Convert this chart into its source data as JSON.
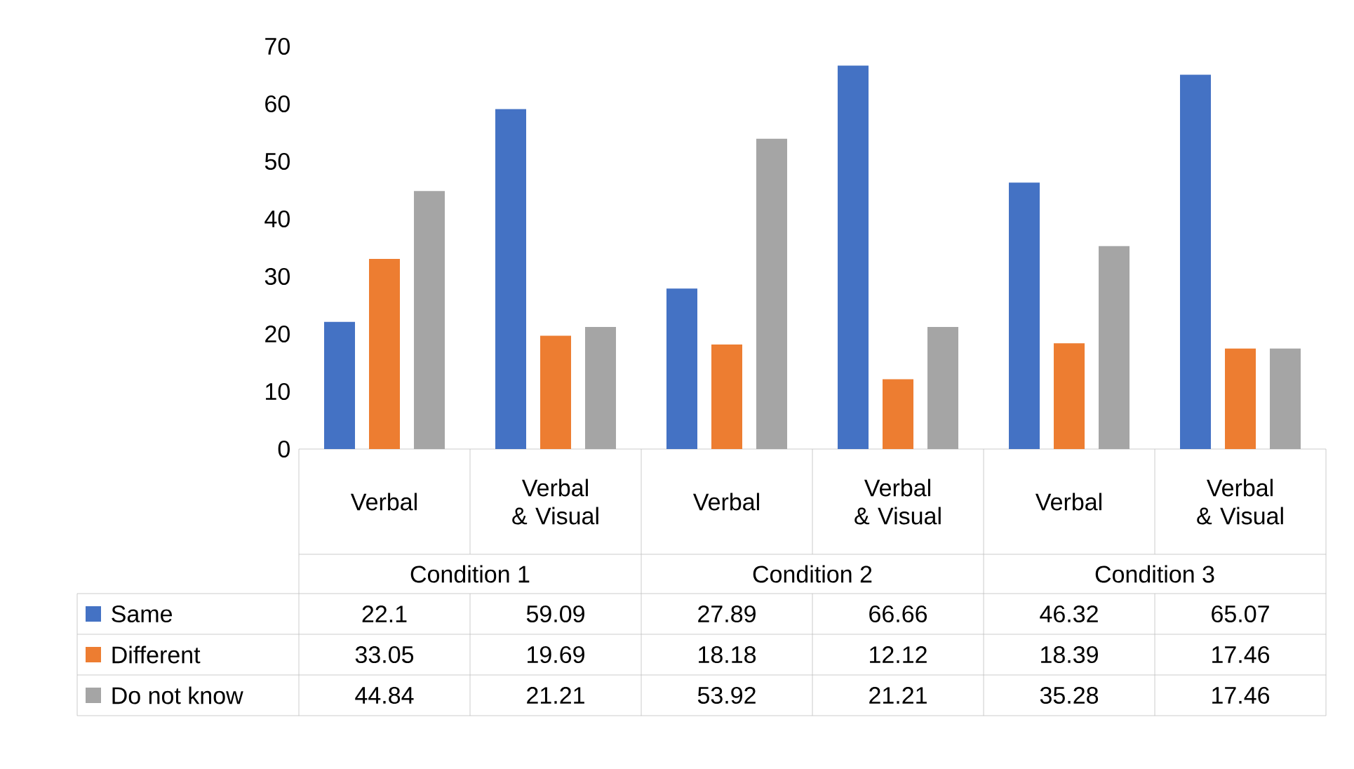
{
  "chart_data": {
    "type": "bar",
    "categories": [
      "Verbal",
      "Verbal & Visual",
      "Verbal",
      "Verbal & Visual",
      "Verbal",
      "Verbal & Visual"
    ],
    "annotations": [
      "Condition 1",
      "Condition 2",
      "Condition 3"
    ],
    "series": [
      {
        "name": "Same",
        "color": "#4472c4",
        "values": [
          22.1,
          59.09,
          27.89,
          66.66,
          46.32,
          65.07
        ]
      },
      {
        "name": "Different",
        "color": "#ed7d31",
        "values": [
          33.05,
          19.69,
          18.18,
          12.12,
          18.39,
          17.46
        ]
      },
      {
        "name": "Do not know",
        "color": "#a5a5a5",
        "values": [
          44.84,
          21.21,
          53.92,
          21.21,
          35.28,
          17.46
        ]
      }
    ],
    "ylim": [
      0,
      70
    ],
    "yticks": [
      0,
      10,
      20,
      30,
      40,
      50,
      60,
      70
    ],
    "data_labels": true,
    "legend": "bottom"
  }
}
